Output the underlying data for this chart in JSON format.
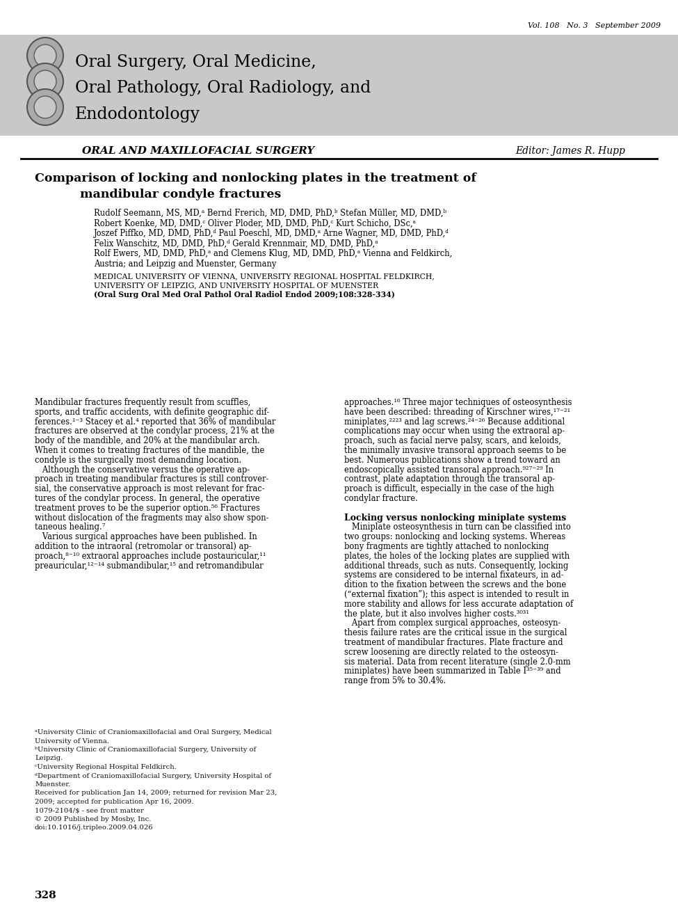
{
  "bg_color": "#ffffff",
  "page_width": 9.75,
  "page_height": 13.05,
  "vol_line": "Vol. 108   No. 3   September 2009",
  "journal_title_lines": [
    "Oral Surgery, Oral Medicine,",
    "Oral Pathology, Oral Radiology, and",
    "Endodontology"
  ],
  "section_label": "ORAL AND MAXILLOFACIAL SURGERY",
  "editor_label": "Editor: James R. Hupp",
  "article_title_line1": "Comparison of locking and nonlocking plates in the treatment of",
  "article_title_line2": "mandibular condyle fractures",
  "authors_lines": [
    "Rudolf Seemann, MS, MD,ᵃ Bernd Frerich, MD, DMD, PhD,ᵇ Stefan Müller, MD, DMD,ᵇ",
    "Robert Koenke, MD, DMD,ᶜ Oliver Ploder, MD, DMD, PhD,ᶜ Kurt Schicho, DSc,ᵃ",
    "Joszef Piffko, MD, DMD, PhD,ᵈ Paul Poeschl, MD, DMD,ᵃ Arne Wagner, MD, DMD, PhD,ᵈ",
    "Felix Wanschitz, MD, DMD, PhD,ᵈ Gerald Krennmair, MD, DMD, PhD,ᵃ",
    "Rolf Ewers, MD, DMD, PhD,ᵃ and Clemens Klug, MD, DMD, PhD,ᵃ Vienna and Feldkirch,",
    "Austria; and Leipzig and Muenster, Germany"
  ],
  "affiliations_lines": [
    "MEDICAL UNIVERSITY OF VIENNA, UNIVERSITY REGIONAL HOSPITAL FELDKIRCH,",
    "UNIVERSITY OF LEIPZIG, AND UNIVERSITY HOSPITAL OF MUENSTER",
    "(Oral Surg Oral Med Oral Pathol Oral Radiol Endod 2009;108:328-334)"
  ],
  "footnotes_left": [
    "ᵃUniversity Clinic of Craniomaxillofacial and Oral Surgery, Medical",
    "University of Vienna.",
    "ᵇUniversity Clinic of Craniomaxillofacial Surgery, University of",
    "Leipzig.",
    "ᶜUniversity Regional Hospital Feldkirch.",
    "ᵈDepartment of Craniomaxillofacial Surgery, University Hospital of",
    "Muenster.",
    "Received for publication Jan 14, 2009; returned for revision Mar 23,",
    "2009; accepted for publication Apr 16, 2009.",
    "1079-2104/$ - see front matter",
    "© 2009 Published by Mosby, Inc.",
    "doi:10.1016/j.tripleo.2009.04.026"
  ],
  "page_number": "328",
  "header_bg": "#c8c8c8",
  "circles_color_outer": "#aaaaaa",
  "circles_color_inner": "#c8c8c8",
  "circles_color_dark": "#555555"
}
